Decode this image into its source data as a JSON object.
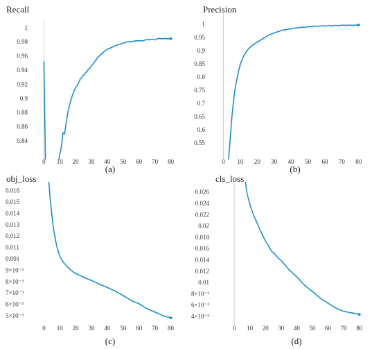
{
  "colors": {
    "series": "#1a8ac4",
    "raw": "#b9e2f2",
    "zero_axis": "#cfcfcf"
  },
  "chart_data": [
    {
      "type": "line",
      "title": "Recall",
      "panel_label": "(a)",
      "xlim": [
        -8,
        85
      ],
      "ylim": [
        0.825,
        1.015
      ],
      "x_ticks": [
        "0",
        "10",
        "20",
        "30",
        "40",
        "50",
        "60",
        "70",
        "80"
      ],
      "y_ticks": [
        "0.84",
        "0.86",
        "0.88",
        "0.9",
        "0.92",
        "0.94",
        "0.96",
        "0.98",
        "1"
      ],
      "series": [
        {
          "x": [
            0,
            0.5,
            1,
            9,
            10,
            11,
            12,
            13,
            14,
            15,
            16,
            17,
            18,
            19,
            20,
            21,
            22,
            23,
            24,
            25,
            26,
            27,
            28,
            29,
            30,
            31,
            32,
            33,
            34,
            35,
            36,
            37,
            38,
            39,
            40,
            42,
            44,
            46,
            48,
            50,
            52,
            54,
            56,
            58,
            60,
            62,
            64,
            66,
            68,
            70,
            72,
            74,
            76,
            78,
            80
          ],
          "y": [
            0.962,
            0.89,
            0.82,
            0.82,
            0.832,
            0.843,
            0.862,
            0.861,
            0.876,
            0.89,
            0.9,
            0.908,
            0.915,
            0.921,
            0.926,
            0.928,
            0.933,
            0.938,
            0.94,
            0.943,
            0.946,
            0.948,
            0.951,
            0.953,
            0.956,
            0.959,
            0.962,
            0.965,
            0.968,
            0.97,
            0.972,
            0.974,
            0.976,
            0.978,
            0.979,
            0.981,
            0.983,
            0.985,
            0.986,
            0.988,
            0.989,
            0.99,
            0.99,
            0.991,
            0.991,
            0.991,
            0.992,
            0.993,
            0.993,
            0.993,
            0.994,
            0.994,
            0.994,
            0.994,
            0.994
          ]
        }
      ]
    },
    {
      "type": "line",
      "title": "Precision",
      "panel_label": "(b)",
      "xlim": [
        -8,
        85
      ],
      "ylim": [
        0.5,
        1.035
      ],
      "x_ticks": [
        "0",
        "10",
        "20",
        "30",
        "40",
        "50",
        "60",
        "70",
        "80"
      ],
      "y_ticks": [
        "0.55",
        "0.6",
        "0.65",
        "0.7",
        "0.75",
        "0.8",
        "0.85",
        "0.9",
        "0.95",
        "1"
      ],
      "series": [
        {
          "x": [
            3,
            4,
            5,
            6,
            7,
            8,
            9,
            10,
            11,
            12,
            13,
            14,
            15,
            16,
            17,
            18,
            19,
            20,
            22,
            24,
            26,
            28,
            30,
            32,
            34,
            36,
            38,
            40,
            42,
            44,
            46,
            48,
            50,
            52,
            54,
            56,
            58,
            60,
            62,
            64,
            66,
            68,
            70,
            72,
            74,
            76,
            78,
            80
          ],
          "y": [
            0.5,
            0.58,
            0.66,
            0.72,
            0.77,
            0.8,
            0.83,
            0.855,
            0.87,
            0.885,
            0.895,
            0.905,
            0.912,
            0.918,
            0.923,
            0.928,
            0.932,
            0.936,
            0.943,
            0.951,
            0.958,
            0.965,
            0.969,
            0.974,
            0.978,
            0.981,
            0.983,
            0.985,
            0.987,
            0.989,
            0.99,
            0.991,
            0.992,
            0.993,
            0.994,
            0.995,
            0.995,
            0.996,
            0.996,
            0.997,
            0.997,
            0.997,
            0.998,
            0.998,
            0.998,
            0.998,
            0.998,
            0.999
          ]
        }
      ]
    },
    {
      "type": "line",
      "title": "obj_loss",
      "panel_label": "(c)",
      "xlim": [
        -8,
        85
      ],
      "ylim": [
        0.0047,
        0.0167
      ],
      "x_ticks": [
        "0",
        "10",
        "20",
        "30",
        "40",
        "50",
        "60",
        "70",
        "80"
      ],
      "y_ticks": [
        "5×10⁻³",
        "6×10⁻³",
        "7×10⁻³",
        "8×10⁻³",
        "9×10⁻³",
        "0.001",
        "0.011",
        "0.012",
        "0.013",
        "0.014",
        "0.015",
        "0.016"
      ],
      "series": [
        {
          "x": [
            3,
            4,
            5,
            6,
            7,
            8,
            9,
            10,
            12,
            14,
            16,
            18,
            20,
            25,
            30,
            35,
            40,
            45,
            50,
            55,
            60,
            65,
            70,
            75,
            80
          ],
          "y": [
            0.0172,
            0.0155,
            0.0142,
            0.0131,
            0.0123,
            0.0116,
            0.0111,
            0.0107,
            0.0102,
            0.0099,
            0.0096,
            0.0094,
            0.0092,
            0.0089,
            0.0086,
            0.0083,
            0.008,
            0.0077,
            0.0073,
            0.0069,
            0.0066,
            0.0062,
            0.0059,
            0.0056,
            0.0054
          ]
        }
      ]
    },
    {
      "type": "line",
      "title": "cls_loss",
      "panel_label": "(d)",
      "xlim": [
        -8,
        85
      ],
      "ylim": [
        0.0035,
        0.0275
      ],
      "x_ticks": [
        "0",
        "10",
        "20",
        "30",
        "40",
        "50",
        "60",
        "70",
        "80"
      ],
      "y_ticks": [
        "4×10⁻³",
        "6×10⁻³",
        "8×10⁻³",
        "0.01",
        "0.012",
        "0.014",
        "0.016",
        "0.018",
        "0.02",
        "0.022",
        "0.024",
        "0.026"
      ],
      "series": [
        {
          "x": [
            7,
            8,
            10,
            12,
            14,
            16,
            18,
            20,
            22,
            24,
            26,
            28,
            30,
            35,
            40,
            45,
            50,
            55,
            60,
            65,
            70,
            75,
            80
          ],
          "y": [
            0.0285,
            0.0265,
            0.0243,
            0.0228,
            0.0215,
            0.0203,
            0.0191,
            0.0181,
            0.0172,
            0.0163,
            0.0158,
            0.0152,
            0.0147,
            0.0132,
            0.0119,
            0.0105,
            0.0094,
            0.0083,
            0.0074,
            0.0066,
            0.006,
            0.0058,
            0.0055
          ]
        }
      ]
    }
  ]
}
